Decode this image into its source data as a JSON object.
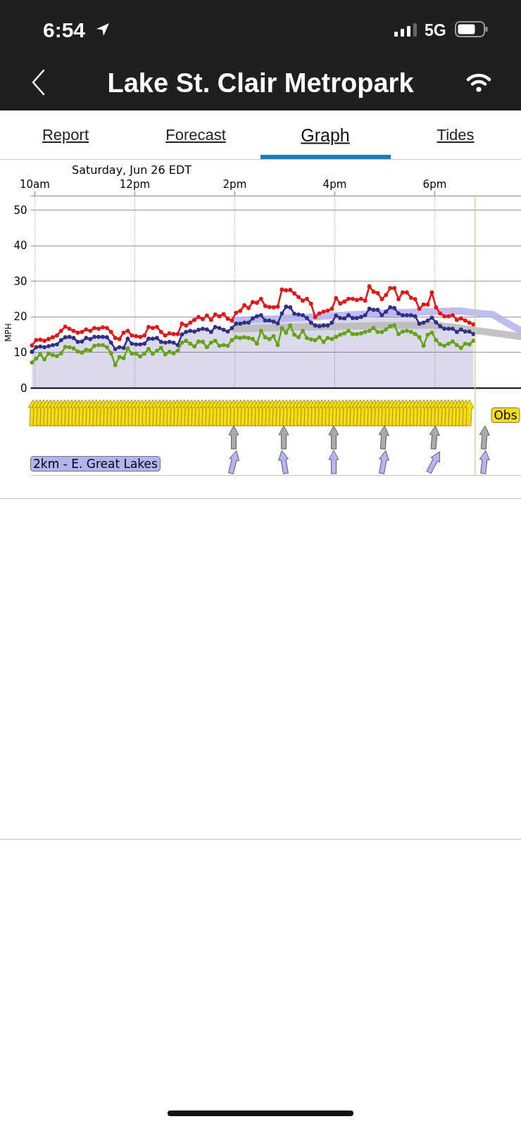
{
  "chart_data": {
    "type": "line",
    "title": "Lake St. Clair Metropark",
    "subtitle": "Saturday, Jun 26 EDT",
    "ylabel": "MPH",
    "annotations": [
      "6:54",
      "5G",
      "Report",
      "Forecast",
      "Graph",
      "Tides",
      "Obs"
    ],
    "x": [
      "--06-26T09:57",
      "--06-26T10:02",
      "--06-26T10:07",
      "--06-26T10:12",
      "--06-26T10:17",
      "--06-26T10:22",
      "--06-26T10:27",
      "--06-26T10:32",
      "--06-26T10:37",
      "--06-26T10:42",
      "--06-26T10:47",
      "--06-26T10:52",
      "--06-26T10:57",
      "--06-26T11:02",
      "--06-26T11:07",
      "--06-26T11:12",
      "--06-26T11:17",
      "--06-26T11:22",
      "--06-26T11:27",
      "--06-26T11:32",
      "--06-26T11:37",
      "--06-26T11:42",
      "--06-26T11:47",
      "--06-26T11:52",
      "--06-26T11:57",
      "--06-26T12:02",
      "--06-26T12:07",
      "--06-26T12:12",
      "--06-26T12:17",
      "--06-26T12:22",
      "--06-26T12:27",
      "--06-26T12:32",
      "--06-26T12:37",
      "--06-26T12:42",
      "--06-26T12:47",
      "--06-26T12:52",
      "--06-26T12:57",
      "--06-26T13:02",
      "--06-26T13:07",
      "--06-26T13:12",
      "--06-26T13:17",
      "--06-26T13:22",
      "--06-26T13:27",
      "--06-26T13:32",
      "--06-26T13:37",
      "--06-26T13:42",
      "--06-26T13:47",
      "--06-26T13:52",
      "--06-26T13:57",
      "--06-26T14:02",
      "--06-26T14:07",
      "--06-26T14:12",
      "--06-26T14:17",
      "--06-26T14:22",
      "--06-26T14:27",
      "--06-26T14:32",
      "--06-26T14:37",
      "--06-26T14:42",
      "--06-26T14:47",
      "--06-26T14:52",
      "--06-26T14:57",
      "--06-26T15:02",
      "--06-26T15:07",
      "--06-26T15:12",
      "--06-26T15:17",
      "--06-26T15:22",
      "--06-26T15:27",
      "--06-26T15:32",
      "--06-26T15:37",
      "--06-26T15:42",
      "--06-26T15:47",
      "--06-26T15:52",
      "--06-26T15:57",
      "--06-26T16:02",
      "--06-26T16:07",
      "--06-26T16:12",
      "--06-26T16:17",
      "--06-26T16:22",
      "--06-26T16:27",
      "--06-26T16:32",
      "--06-26T16:37",
      "--06-26T16:42",
      "--06-26T16:47",
      "--06-26T16:52",
      "--06-26T16:57",
      "--06-26T17:02",
      "--06-26T17:07",
      "--06-26T17:12",
      "--06-26T17:17",
      "--06-26T17:22",
      "--06-26T17:27",
      "--06-26T17:32",
      "--06-26T17:37",
      "--06-26T17:42",
      "--06-26T17:47",
      "--06-26T17:52",
      "--06-26T17:57",
      "--06-26T18:02",
      "--06-26T18:07",
      "--06-26T18:12",
      "--06-26T18:17",
      "--06-26T18:22",
      "--06-26T18:27",
      "--06-26T18:32",
      "--06-26T18:37",
      "--06-26T18:42",
      "--06-26T18:47"
    ],
    "xlim": [
      "--06-26T09:55",
      "--06-26T19:44"
    ],
    "xticks": [
      {
        "value": "--06-26T10:00",
        "label": "10am"
      },
      {
        "value": "--06-26T12:00",
        "label": "12pm"
      },
      {
        "value": "--06-26T14:00",
        "label": "2pm"
      },
      {
        "value": "--06-26T16:00",
        "label": "4pm"
      },
      {
        "value": "--06-26T18:00",
        "label": "6pm"
      }
    ],
    "ylim": [
      0,
      54
    ],
    "yticks": [
      0,
      10,
      20,
      30,
      40,
      50
    ],
    "grid": true,
    "legend": "bottom left",
    "marker": "circle",
    "ref_lines": [
      {
        "axis": "x",
        "value": "--06-26T18:49",
        "color": "#d6c27e"
      }
    ],
    "series": [
      {
        "color": "#ee1111",
        "values": [
          11.9,
          13.4,
          13.5,
          13.2,
          13.7,
          14.2,
          14.7,
          16.0,
          17.2,
          16.6,
          16.0,
          15.5,
          15.7,
          16.4,
          16.0,
          16.8,
          16.6,
          17.0,
          16.8,
          15.7,
          14.0,
          13.7,
          15.5,
          16.0,
          14.7,
          14.5,
          14.3,
          14.7,
          17.1,
          16.8,
          17.1,
          15.7,
          14.7,
          15.3,
          15.1,
          15.1,
          18.0,
          17.5,
          18.3,
          19.1,
          19.9,
          19.3,
          20.3,
          19.1,
          20.6,
          20.1,
          20.7,
          19.4,
          18.9,
          21.1,
          21.6,
          23.2,
          22.4,
          24.1,
          23.9,
          25.0,
          23.0,
          22.7,
          22.6,
          22.8,
          27.6,
          27.4,
          27.5,
          26.5,
          25.5,
          24.5,
          25.0,
          23.6,
          19.9,
          20.9,
          21.4,
          21.7,
          22.2,
          25.2,
          23.7,
          24.2,
          25.0,
          25.0,
          24.7,
          25.0,
          24.5,
          28.5,
          27.0,
          26.6,
          24.9,
          26.1,
          28.0,
          28.0,
          24.9,
          26.8,
          26.8,
          25.3,
          24.9,
          22.2,
          23.4,
          23.4,
          26.8,
          22.6,
          20.9,
          20.1,
          20.1,
          20.4,
          19.1,
          19.5,
          18.9,
          18.3,
          17.8
        ]
      },
      {
        "type": "area",
        "color": "#30308c",
        "values": [
          10.1,
          11.4,
          11.6,
          11.4,
          11.7,
          12.0,
          12.2,
          13.4,
          14.2,
          14.3,
          14.0,
          12.9,
          13.0,
          14.0,
          13.7,
          14.3,
          14.3,
          14.3,
          14.2,
          12.7,
          10.9,
          11.4,
          11.2,
          13.8,
          12.4,
          12.2,
          12.2,
          12.4,
          13.8,
          13.8,
          14.0,
          12.9,
          12.7,
          12.9,
          12.7,
          12.0,
          15.0,
          15.7,
          16.0,
          15.8,
          16.3,
          16.6,
          16.4,
          15.7,
          17.1,
          16.8,
          16.3,
          15.8,
          16.8,
          18.0,
          18.0,
          18.3,
          18.3,
          19.5,
          20.1,
          20.4,
          18.9,
          18.9,
          18.6,
          18.1,
          20.9,
          22.8,
          22.6,
          20.8,
          20.6,
          20.4,
          19.6,
          18.3,
          17.5,
          17.3,
          17.5,
          17.5,
          18.3,
          20.3,
          19.6,
          19.5,
          20.4,
          19.6,
          19.6,
          19.9,
          20.4,
          22.2,
          21.9,
          21.9,
          20.4,
          21.4,
          22.6,
          22.4,
          20.9,
          20.4,
          20.4,
          20.4,
          20.1,
          18.0,
          18.3,
          18.9,
          19.7,
          18.4,
          17.3,
          16.6,
          16.6,
          16.6,
          15.7,
          16.4,
          15.8,
          15.8,
          15.1
        ]
      },
      {
        "color": "#66a313",
        "values": [
          7.1,
          8.2,
          9.4,
          8.0,
          9.6,
          9.2,
          8.9,
          9.7,
          11.5,
          11.4,
          11.1,
          10.2,
          9.9,
          10.7,
          10.5,
          11.8,
          12.0,
          12.0,
          11.4,
          9.7,
          6.4,
          8.6,
          8.3,
          11.1,
          9.6,
          9.6,
          8.8,
          9.6,
          10.9,
          9.6,
          10.4,
          11.2,
          9.4,
          10.1,
          9.7,
          10.4,
          12.7,
          13.2,
          12.4,
          11.6,
          13.0,
          12.9,
          11.4,
          12.7,
          13.2,
          11.8,
          12.0,
          11.8,
          13.4,
          14.2,
          14.0,
          14.2,
          14.0,
          13.7,
          12.4,
          16.0,
          14.2,
          13.7,
          14.5,
          12.0,
          16.8,
          15.5,
          17.5,
          14.9,
          14.2,
          16.0,
          14.0,
          13.6,
          13.4,
          14.2,
          12.9,
          14.0,
          13.7,
          14.3,
          14.9,
          15.3,
          16.0,
          15.1,
          15.1,
          15.3,
          15.7,
          16.0,
          16.8,
          15.7,
          15.7,
          16.4,
          17.3,
          17.5,
          15.1,
          15.8,
          16.0,
          15.7,
          15.1,
          14.2,
          11.8,
          14.9,
          15.5,
          13.4,
          12.2,
          11.8,
          12.4,
          13.0,
          12.0,
          11.2,
          12.4,
          12.2,
          13.2
        ]
      },
      {
        "color": "#b9b9b9",
        "marker": "none",
        "x": [
          "--06-26T14:00",
          "--06-26T15:00",
          "--06-26T16:00",
          "--06-26T17:00",
          "--06-26T18:00",
          "--06-26T18:30",
          "--06-26T18:59",
          "--06-26T19:44"
        ],
        "values": [
          16.5,
          17.0,
          17.2,
          17.5,
          17.6,
          16.8,
          15.8,
          14.4
        ]
      },
      {
        "name": "2km - E. Great Lakes",
        "color": "#b3b3f1",
        "marker": "none",
        "x": [
          "--06-26T14:00",
          "--06-26T15:00",
          "--06-26T15:40",
          "--06-26T16:00",
          "--06-26T17:00",
          "--06-26T18:00",
          "--06-26T18:30",
          "--06-26T18:59",
          "--06-26T19:10",
          "--06-26T19:20",
          "--06-26T19:44"
        ],
        "values": [
          19.0,
          19.5,
          20.0,
          20.3,
          21.0,
          21.4,
          21.6,
          20.8,
          20.6,
          19.2,
          16.0
        ]
      }
    ]
  }
}
